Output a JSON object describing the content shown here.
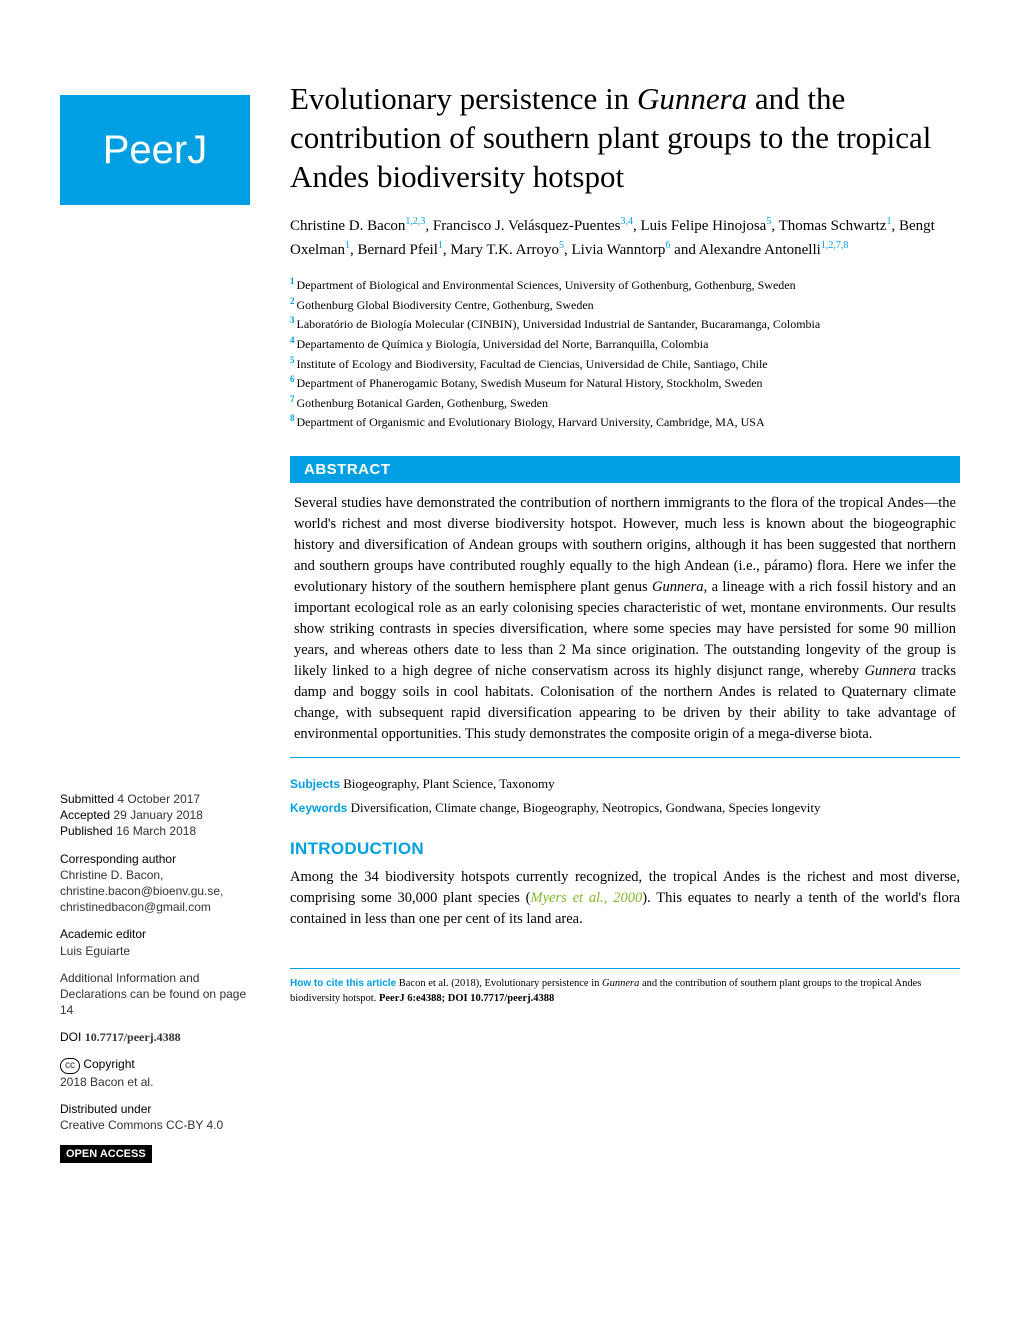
{
  "logo_text": "PeerJ",
  "title_pre": "Evolutionary persistence in ",
  "title_genus": "Gunnera",
  "title_post": " and the contribution of southern plant groups to the tropical Andes biodiversity hotspot",
  "authors": [
    {
      "name": "Christine D. Bacon",
      "aff": "1,2,3"
    },
    {
      "name": "Francisco J. Velásquez-Puentes",
      "aff": "3,4"
    },
    {
      "name": "Luis Felipe Hinojosa",
      "aff": "5"
    },
    {
      "name": "Thomas Schwartz",
      "aff": "1"
    },
    {
      "name": "Bengt Oxelman",
      "aff": "1"
    },
    {
      "name": "Bernard Pfeil",
      "aff": "1"
    },
    {
      "name": "Mary T.K. Arroyo",
      "aff": "5"
    },
    {
      "name": "Livia Wanntorp",
      "aff": "6"
    },
    {
      "name": "Alexandre Antonelli",
      "aff": "1,2,7,8"
    }
  ],
  "affiliations": [
    {
      "n": "1",
      "text": "Department of Biological and Environmental Sciences, University of Gothenburg, Gothenburg, Sweden"
    },
    {
      "n": "2",
      "text": "Gothenburg Global Biodiversity Centre, Gothenburg, Sweden"
    },
    {
      "n": "3",
      "text": "Laboratório de Biología Molecular (CINBIN), Universidad Industrial de Santander, Bucaramanga, Colombia"
    },
    {
      "n": "4",
      "text": "Departamento de Química y Biología, Universidad del Norte, Barranquilla, Colombia"
    },
    {
      "n": "5",
      "text": "Institute of Ecology and Biodiversity, Facultad de Ciencias, Universidad de Chile, Santiago, Chile"
    },
    {
      "n": "6",
      "text": "Department of Phanerogamic Botany, Swedish Museum for Natural History, Stockholm, Sweden"
    },
    {
      "n": "7",
      "text": "Gothenburg Botanical Garden, Gothenburg, Sweden"
    },
    {
      "n": "8",
      "text": "Department of Organismic and Evolutionary Biology, Harvard University, Cambridge, MA, USA"
    }
  ],
  "abstract_label": "ABSTRACT",
  "abstract_pre": "Several studies have demonstrated the contribution of northern immigrants to the flora of the tropical Andes—the world's richest and most diverse biodiversity hotspot. However, much less is known about the biogeographic history and diversification of Andean groups with southern origins, although it has been suggested that northern and southern groups have contributed roughly equally to the high Andean (i.e., páramo) flora. Here we infer the evolutionary history of the southern hemisphere plant genus ",
  "abstract_genus1": "Gunnera",
  "abstract_mid": ", a lineage with a rich fossil history and an important ecological role as an early colonising species characteristic of wet, montane environments. Our results show striking contrasts in species diversification, where some species may have persisted for some 90 million years, and whereas others date to less than 2 Ma since origination. The outstanding longevity of the group is likely linked to a high degree of niche conservatism across its highly disjunct range, whereby ",
  "abstract_genus2": "Gunnera",
  "abstract_post": " tracks damp and boggy soils in cool habitats. Colonisation of the northern Andes is related to Quaternary climate change, with subsequent rapid diversification appearing to be driven by their ability to take advantage of environmental opportunities. This study demonstrates the composite origin of a mega-diverse biota.",
  "subjects_label": "Subjects",
  "subjects_text": "Biogeography, Plant Science, Taxonomy",
  "keywords_label": "Keywords",
  "keywords_text": "Diversification, Climate change, Biogeography, Neotropics, Gondwana, Species longevity",
  "intro_heading": "INTRODUCTION",
  "intro_pre": "Among the 34 biodiversity hotspots currently recognized, the tropical Andes is the richest and most diverse, comprising some 30,000 plant species (",
  "intro_ref": "Myers et al., 2000",
  "intro_post": "). This equates to nearly a tenth of the world's flora contained in less than one per cent of its land area.",
  "sidebar": {
    "submitted_label": "Submitted",
    "submitted_date": "4 October 2017",
    "accepted_label": "Accepted",
    "accepted_date": "29 January 2018",
    "published_label": "Published",
    "published_date": "16 March 2018",
    "corr_label": "Corresponding author",
    "corr_name": "Christine D. Bacon,",
    "corr_email1": "christine.bacon@bioenv.gu.se,",
    "corr_email2": "christinedbacon@gmail.com",
    "editor_label": "Academic editor",
    "editor_name": "Luis Eguiarte",
    "addl_info": "Additional Information and Declarations can be found on page 14",
    "doi_label": "DOI",
    "doi_value": "10.7717/peerj.4388",
    "copyright_label": "Copyright",
    "copyright_text": "2018 Bacon et al.",
    "dist_label": "Distributed under",
    "dist_text": "Creative Commons CC-BY 4.0",
    "open_access": "OPEN ACCESS"
  },
  "citation": {
    "label": "How to cite this article",
    "text_pre": "Bacon et al. (2018), Evolutionary persistence in ",
    "text_genus": "Gunnera",
    "text_post": " and the contribution of southern plant groups to the tropical Andes biodiversity hotspot. ",
    "journal": "PeerJ",
    "ref": " 6:e4388; DOI 10.7717/peerj.4388"
  }
}
